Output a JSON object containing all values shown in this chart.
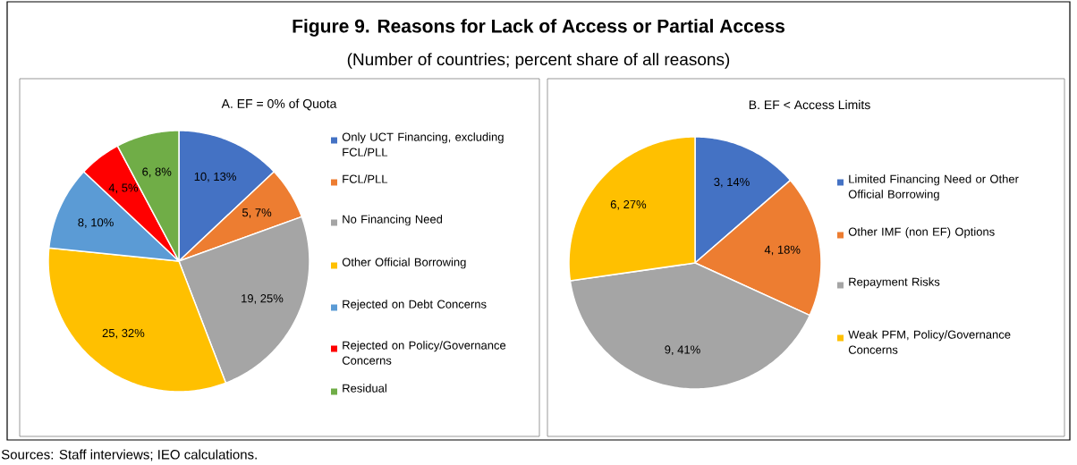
{
  "chart_data": [
    {
      "type": "other",
      "title": "Figure 9. Reasons for Lack of Access or Partial Access",
      "subtitle": "(Number of countries; percent share of all reasons)",
      "annotations": [
        "Sources: Staff interviews; IEO calculations."
      ]
    },
    {
      "type": "pie",
      "title": "A. EF = 0% of Quota",
      "categories": [
        "Only UCT Financing, excluding FCL/PLL",
        "FCL/PLL",
        "No Financing Need",
        "Other Official Borrowing",
        "Rejected on Debt Concerns",
        "Rejected on Policy/Governance Concerns",
        "Residual"
      ],
      "values": [
        10,
        5,
        19,
        25,
        8,
        4,
        6
      ],
      "value_labels": [
        "10, 13%",
        "5, 7%",
        "19, 25%",
        "25, 32%",
        "8, 10%",
        "4, 5%",
        "6, 8%"
      ],
      "colors": [
        "#4472c4",
        "#ed7d31",
        "#a5a5a5",
        "#ffc000",
        "#5b9bd5",
        "#ff0000",
        "#70ad47"
      ],
      "legend": "right"
    },
    {
      "type": "pie",
      "title": "B. EF < Access Limits",
      "categories": [
        "Limited Financing Need or Other Official Borrowing",
        "Other IMF (non EF) Options",
        "Repayment Risks",
        "Weak PFM, Policy/Governance Concerns"
      ],
      "values": [
        3,
        4,
        9,
        6
      ],
      "value_labels": [
        "3, 14%",
        "4, 18%",
        "9, 41%",
        "6, 27%"
      ],
      "colors": [
        "#4472c4",
        "#ed7d31",
        "#a5a5a5",
        "#ffc000"
      ],
      "legend": "right"
    }
  ]
}
